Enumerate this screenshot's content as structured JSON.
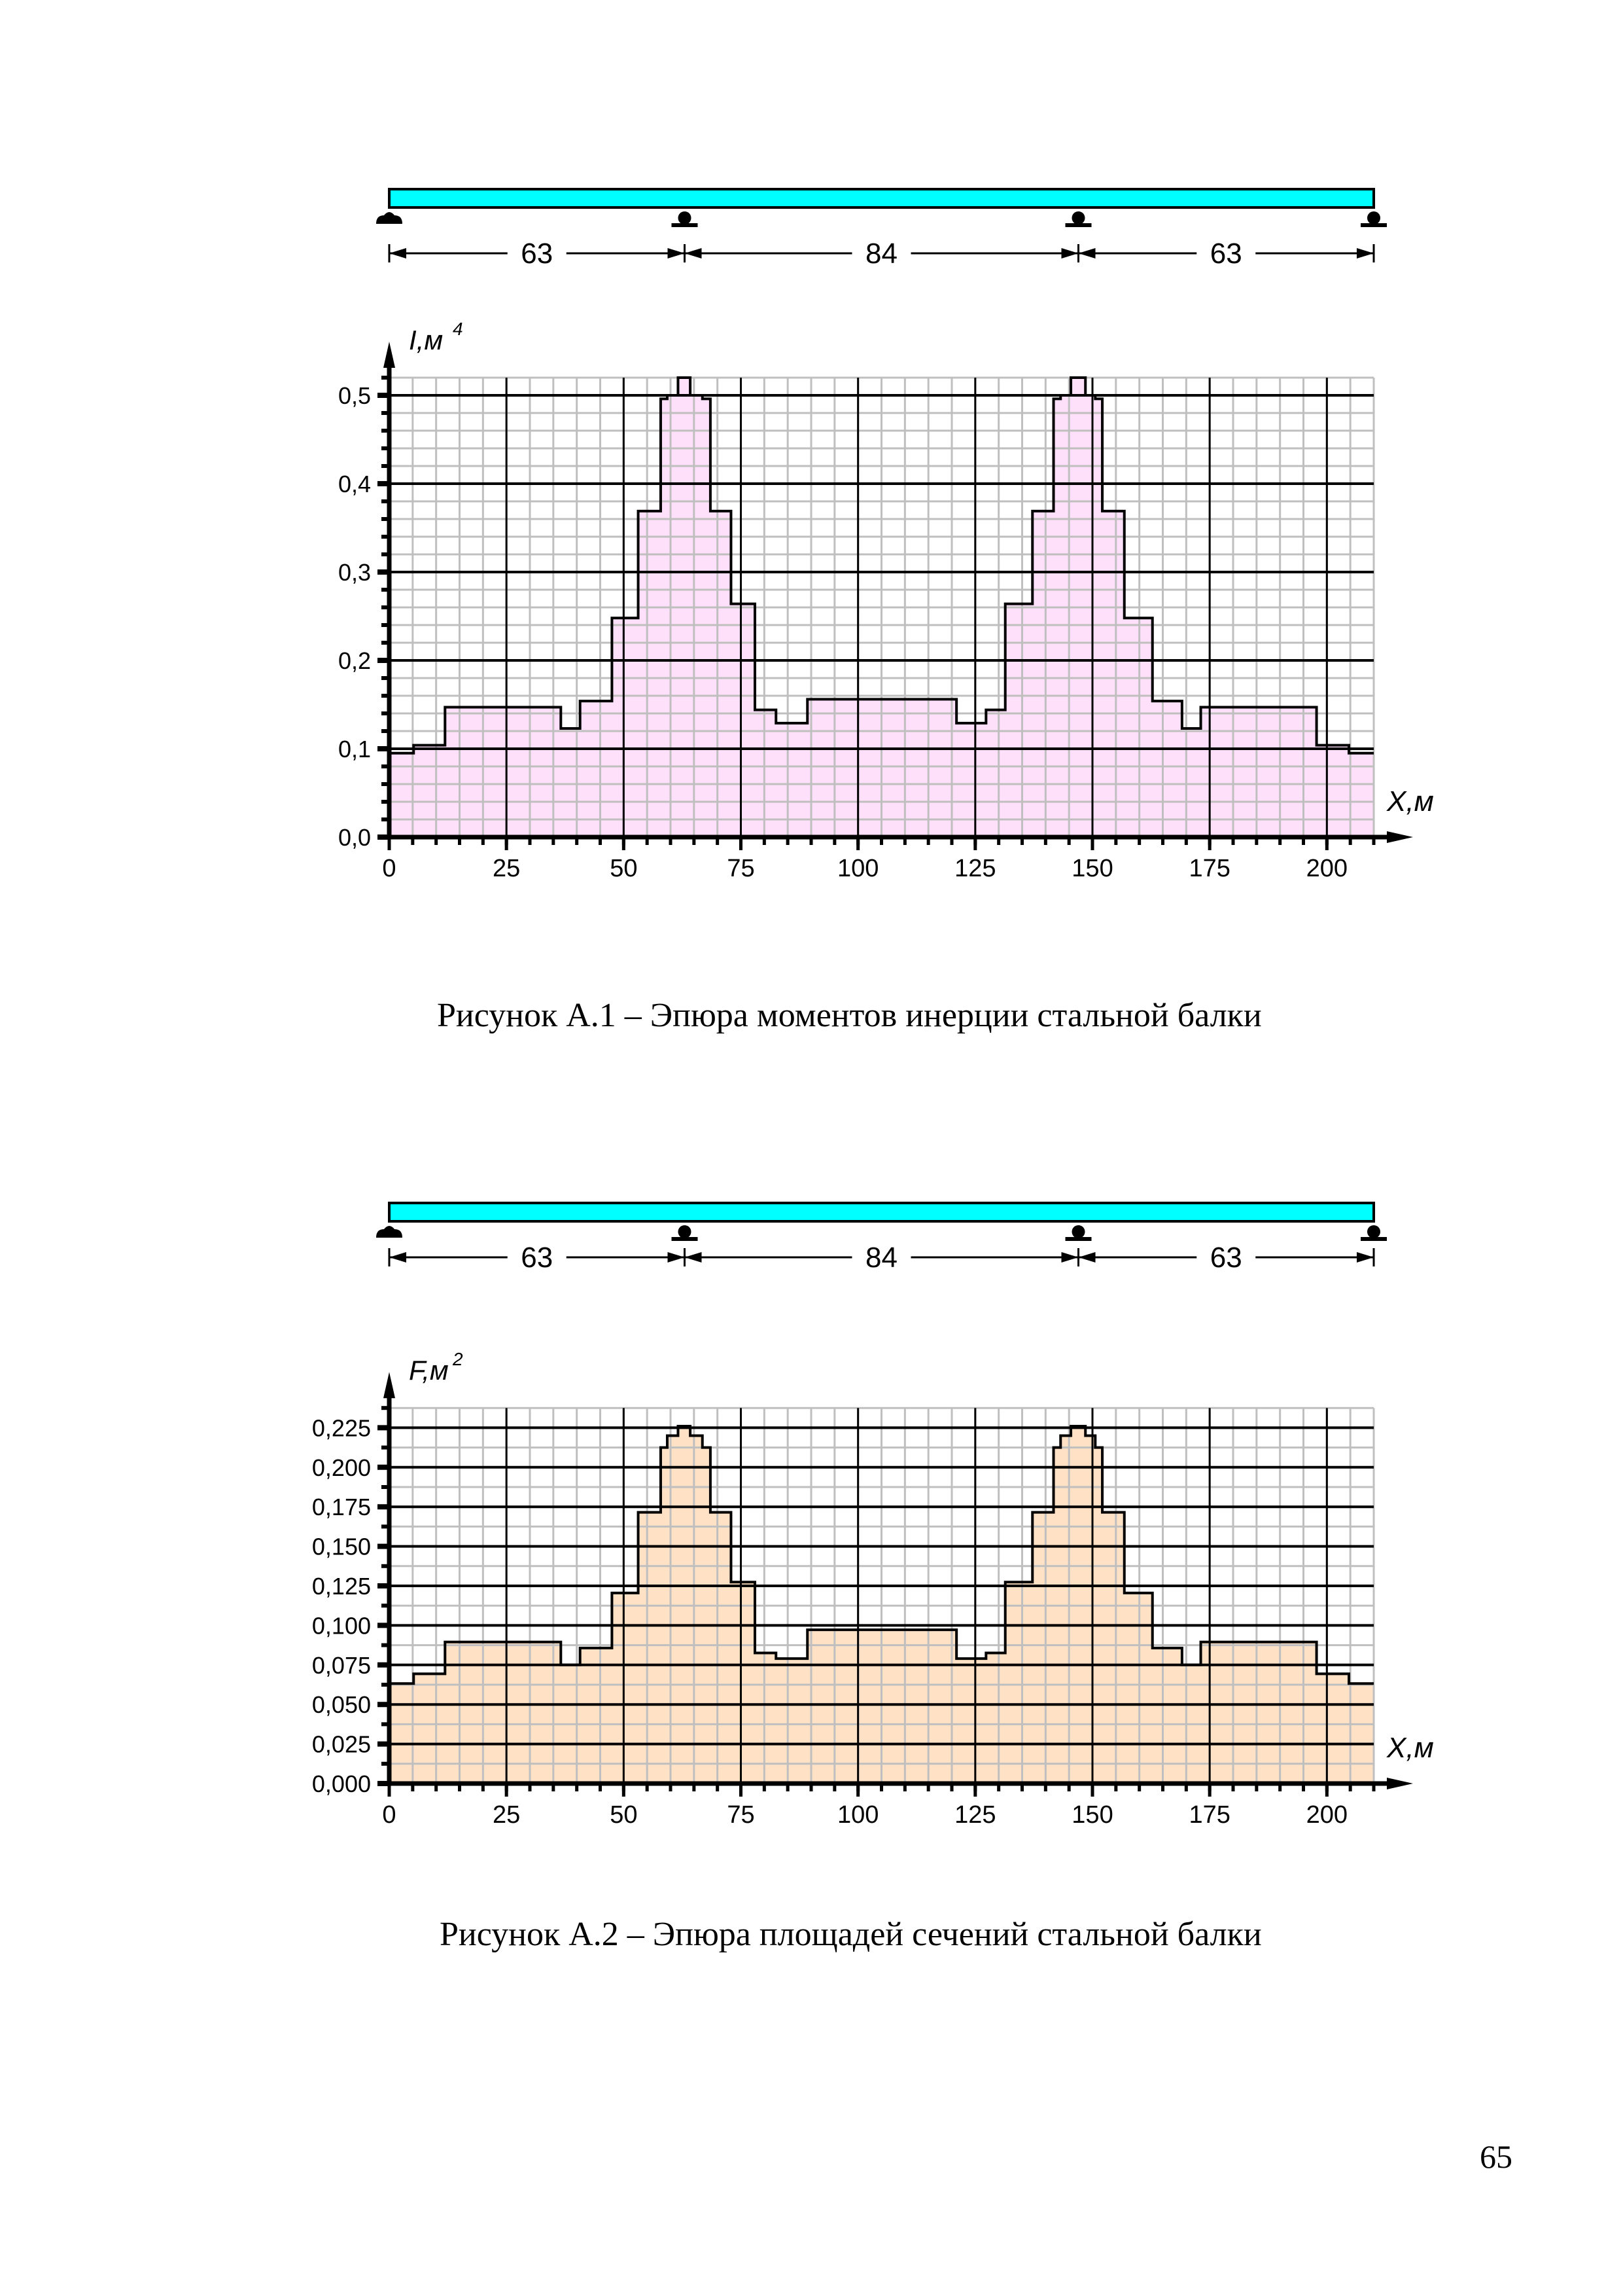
{
  "beams": [
    {
      "spans": [
        63,
        84,
        63
      ],
      "span_labels": [
        "63",
        "84",
        "63"
      ],
      "beam_color": "#00FFFF"
    },
    {
      "spans": [
        63,
        84,
        63
      ],
      "span_labels": [
        "63",
        "84",
        "63"
      ],
      "beam_color": "#00FFFF"
    }
  ],
  "chart_data": [
    {
      "type": "area",
      "style": "step",
      "ylabel": "I,м",
      "ylabel_sup": "4",
      "xlabel": "X,м",
      "xlim": [
        0,
        210
      ],
      "ylim": [
        0,
        0.52
      ],
      "fill": "#FFE0FA",
      "x_ticks": [
        0,
        25,
        50,
        75,
        100,
        125,
        150,
        175,
        200
      ],
      "x_tick_labels": [
        "0",
        "25",
        "50",
        "75",
        "100",
        "125",
        "150",
        "175",
        "200"
      ],
      "y_ticks": [
        0,
        0.1,
        0.2,
        0.3,
        0.4,
        0.5
      ],
      "y_tick_labels": [
        "0,0",
        "0,1",
        "0,2",
        "0,3",
        "0,4",
        "0,5"
      ],
      "x_minor": 5,
      "y_minor": 0.02,
      "edges": [
        0,
        5.2,
        11.9,
        36.6,
        40.7,
        47.5,
        53.1,
        57.9,
        59.3,
        61.6,
        64.2,
        66.8,
        68.5,
        72.9,
        78,
        82.5,
        89.2,
        121,
        127.3,
        131.4,
        137.2,
        141.7,
        143.2,
        145.4,
        148.5,
        150.6,
        152.1,
        156.8,
        162.8,
        169.1,
        173.1,
        197.8,
        204.7,
        210
      ],
      "values": [
        0.095,
        0.104,
        0.147,
        0.123,
        0.154,
        0.248,
        0.369,
        0.496,
        0.5,
        0.52,
        0.5,
        0.496,
        0.369,
        0.264,
        0.144,
        0.129,
        0.156,
        0.129,
        0.144,
        0.264,
        0.369,
        0.496,
        0.5,
        0.52,
        0.5,
        0.496,
        0.369,
        0.248,
        0.154,
        0.123,
        0.147,
        0.104,
        0.095
      ]
    },
    {
      "type": "area",
      "style": "step",
      "ylabel": "F,м",
      "ylabel_sup": "2",
      "xlabel": "X,м",
      "xlim": [
        0,
        210
      ],
      "ylim": [
        0,
        0.2375
      ],
      "fill": "#FFE2C6",
      "x_ticks": [
        0,
        25,
        50,
        75,
        100,
        125,
        150,
        175,
        200
      ],
      "x_tick_labels": [
        "0",
        "25",
        "50",
        "75",
        "100",
        "125",
        "150",
        "175",
        "200"
      ],
      "y_ticks": [
        0,
        0.025,
        0.05,
        0.075,
        0.1,
        0.125,
        0.15,
        0.175,
        0.2,
        0.225
      ],
      "y_tick_labels": [
        "0,000",
        "0,025",
        "0,050",
        "0,075",
        "0,100",
        "0,125",
        "0,150",
        "0,175",
        "0,200",
        "0,225"
      ],
      "x_minor": 5,
      "y_minor": 0.0125,
      "edges": [
        0,
        5.2,
        11.9,
        36.6,
        40.7,
        47.5,
        53.1,
        57.9,
        59.3,
        61.6,
        64.2,
        66.8,
        68.5,
        72.9,
        78,
        82.5,
        89.2,
        121,
        127.3,
        131.4,
        137.2,
        141.7,
        143.2,
        145.4,
        148.5,
        150.6,
        152.1,
        156.8,
        162.8,
        169.1,
        173.1,
        197.8,
        204.7,
        210
      ],
      "values": [
        0.0632,
        0.0694,
        0.0895,
        0.075,
        0.0857,
        0.1205,
        0.1715,
        0.2125,
        0.22,
        0.226,
        0.22,
        0.2125,
        0.1715,
        0.1274,
        0.0826,
        0.079,
        0.0972,
        0.079,
        0.0826,
        0.1274,
        0.1715,
        0.2125,
        0.22,
        0.226,
        0.22,
        0.2125,
        0.1715,
        0.1205,
        0.0857,
        0.075,
        0.0895,
        0.0694,
        0.0632
      ]
    }
  ],
  "captions": [
    "Рисунок А.1 – Эпюра моментов инерции стальной балки",
    "Рисунок А.2 – Эпюра площадей сечений стальной балки"
  ],
  "page_number": "65"
}
